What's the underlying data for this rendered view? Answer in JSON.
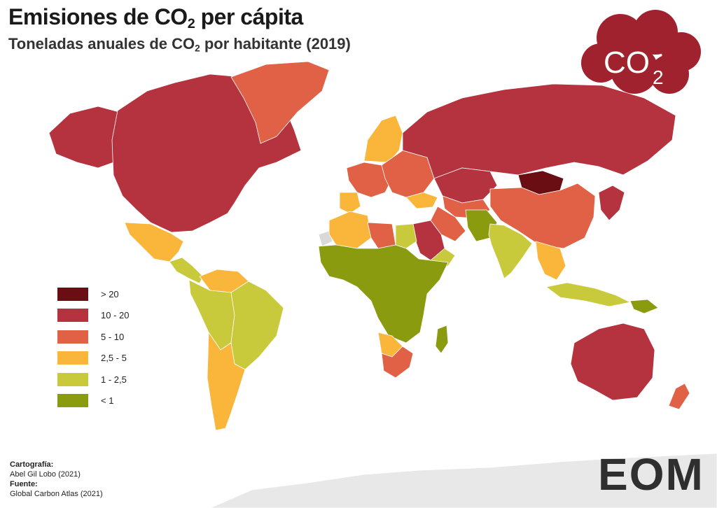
{
  "title": {
    "main": "Emisiones de CO",
    "sub": "2",
    "end": " per cápita"
  },
  "subtitle": {
    "main": "Toneladas anuales de CO",
    "sub": "2",
    "end": " por habitante (2019)"
  },
  "legend": [
    {
      "label": "> 20",
      "color": "#6b0e14"
    },
    {
      "label": "10 - 20",
      "color": "#b5333f"
    },
    {
      "label": "5 - 10",
      "color": "#e06146"
    },
    {
      "label": "2,5 - 5",
      "color": "#fab53b"
    },
    {
      "label": "1 - 2,5",
      "color": "#c8c93b"
    },
    {
      "label": "< 1",
      "color": "#8b9b10"
    }
  ],
  "colors": {
    "no_data": "#d9d9d9",
    "antarctica": "#e8e8e8",
    "logo_cloud": "#a0222e",
    "eom_text": "#2f2f2f",
    "eom_ring": "#6a9a1a"
  },
  "logo": {
    "co2_main": "CO",
    "co2_sub": "2",
    "eom": "EOM"
  },
  "credits": {
    "carto_heading": "Cartografía:",
    "carto_author": "Abel Gil Lobo (2021)",
    "source_heading": "Fuente:",
    "source_name": "Global Carbon Atlas (2021)"
  },
  "map_regions": [
    {
      "name": "canada-usa",
      "class": "10 - 20"
    },
    {
      "name": "alaska",
      "class": "10 - 20"
    },
    {
      "name": "greenland",
      "class": "5 - 10"
    },
    {
      "name": "mexico",
      "class": "2,5 - 5"
    },
    {
      "name": "central-america",
      "class": "1 - 2,5"
    },
    {
      "name": "venezuela",
      "class": "2,5 - 5"
    },
    {
      "name": "colombia-peru-bolivia",
      "class": "1 - 2,5"
    },
    {
      "name": "brazil",
      "class": "1 - 2,5"
    },
    {
      "name": "argentina-chile",
      "class": "2,5 - 5"
    },
    {
      "name": "scandinavia",
      "class": "2,5 - 5"
    },
    {
      "name": "western-europe",
      "class": "5 - 10"
    },
    {
      "name": "iberia",
      "class": "2,5 - 5"
    },
    {
      "name": "eastern-europe",
      "class": "5 - 10"
    },
    {
      "name": "russia",
      "class": "10 - 20"
    },
    {
      "name": "kazakhstan",
      "class": "10 - 20"
    },
    {
      "name": "mongolia",
      "class": "> 20"
    },
    {
      "name": "china",
      "class": "5 - 10"
    },
    {
      "name": "korea-japan",
      "class": "10 - 20"
    },
    {
      "name": "central-asia",
      "class": "5 - 10"
    },
    {
      "name": "iran",
      "class": "5 - 10"
    },
    {
      "name": "turkey",
      "class": "2,5 - 5"
    },
    {
      "name": "saudi-arabia",
      "class": "10 - 20"
    },
    {
      "name": "yemen-oman",
      "class": "1 - 2,5"
    },
    {
      "name": "pakistan-afghanistan",
      "class": "< 1"
    },
    {
      "name": "india",
      "class": "1 - 2,5"
    },
    {
      "name": "southeast-asia",
      "class": "2,5 - 5"
    },
    {
      "name": "indonesia",
      "class": "1 - 2,5"
    },
    {
      "name": "north-africa-algeria",
      "class": "2,5 - 5"
    },
    {
      "name": "libya",
      "class": "5 - 10"
    },
    {
      "name": "egypt",
      "class": "1 - 2,5"
    },
    {
      "name": "sahel-central-africa",
      "class": "< 1"
    },
    {
      "name": "southern-africa",
      "class": "5 - 10"
    },
    {
      "name": "botswana-namibia",
      "class": "2,5 - 5"
    },
    {
      "name": "madagascar",
      "class": "< 1"
    },
    {
      "name": "australia",
      "class": "10 - 20"
    },
    {
      "name": "new-zealand",
      "class": "5 - 10"
    },
    {
      "name": "papua",
      "class": "< 1"
    },
    {
      "name": "western-sahara",
      "class": "no data"
    },
    {
      "name": "antarctica",
      "class": "no data"
    }
  ]
}
